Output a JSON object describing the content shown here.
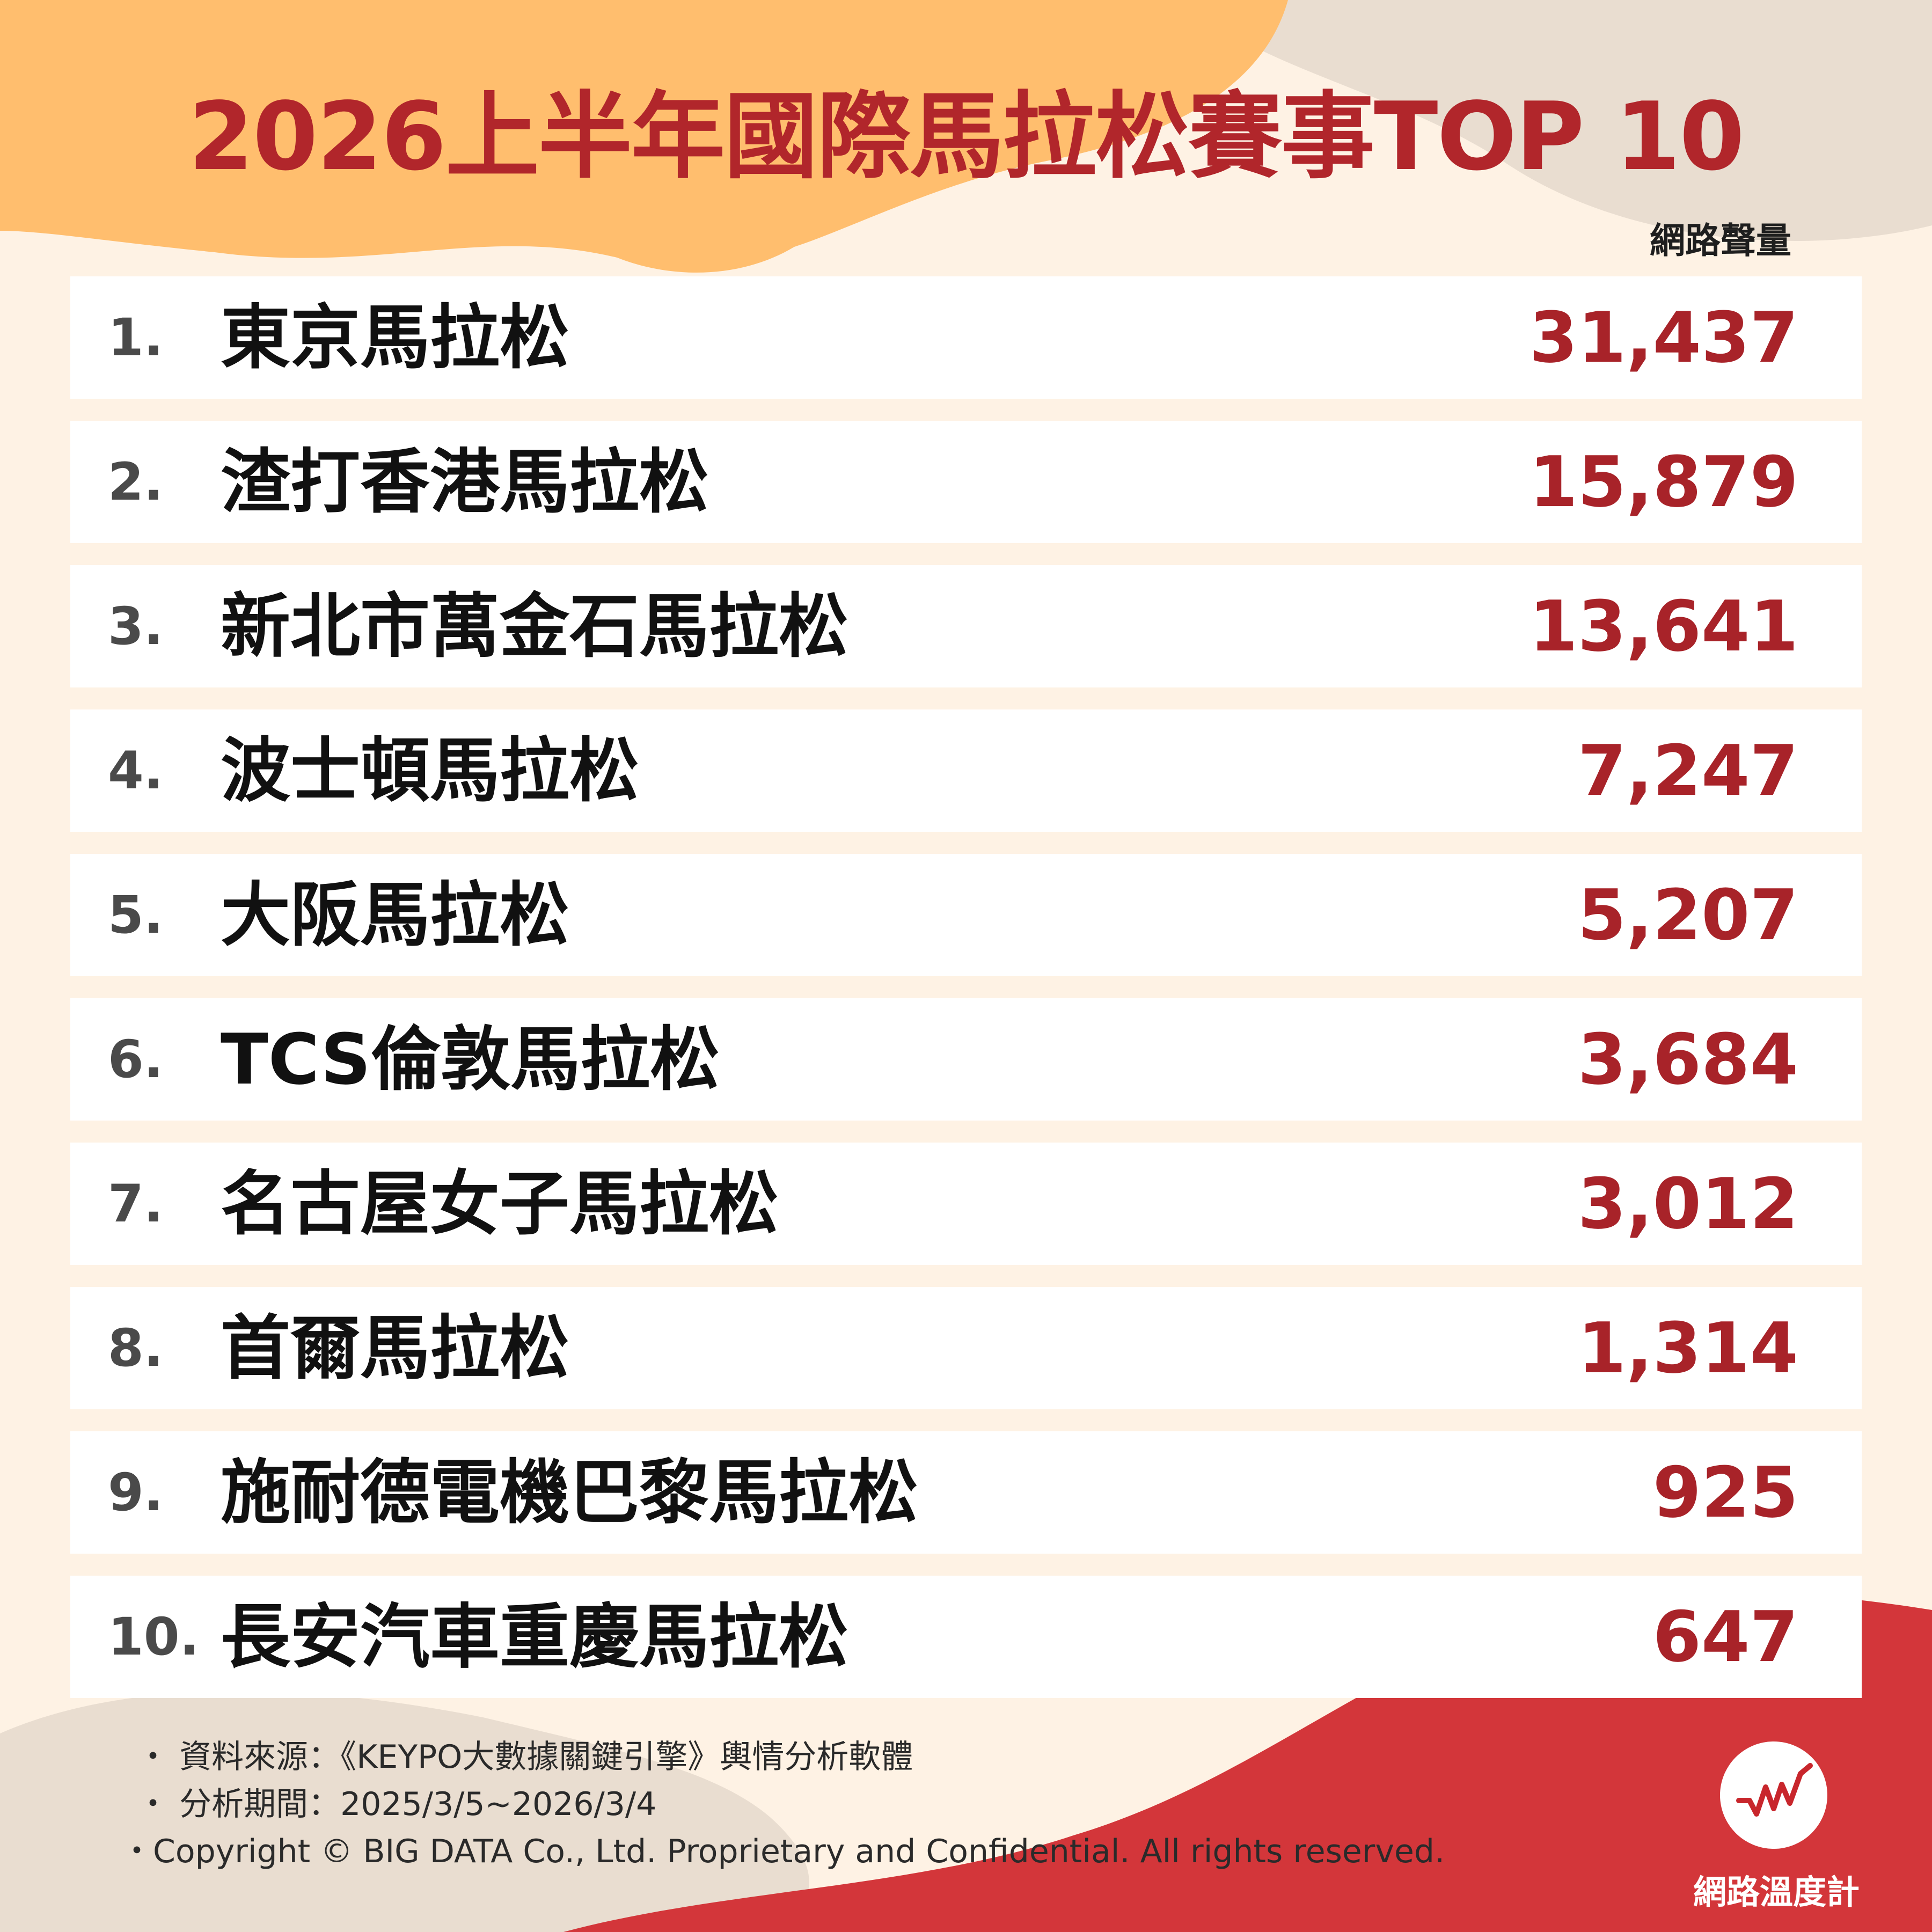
{
  "title": "2026上半年國際馬拉松賽事TOP 10",
  "column_header": "網路聲量",
  "colors": {
    "title": "#B1262B",
    "value": "#A82329",
    "background": "#FEF2E4",
    "accent_orange": "#FFBE6E",
    "accent_red": "#D3363A",
    "accent_beige": "#E9DDD0"
  },
  "chart_data": {
    "type": "table",
    "title": "2026上半年國際馬拉松賽事TOP 10",
    "columns": [
      "",
      "",
      "網路聲量"
    ],
    "rows": [
      {
        "rank": "1.",
        "name": "東京馬拉松",
        "value": "31,437"
      },
      {
        "rank": "2.",
        "name": "渣打香港馬拉松",
        "value": "15,879"
      },
      {
        "rank": "3.",
        "name": "新北市萬金石馬拉松",
        "value": "13,641"
      },
      {
        "rank": "4.",
        "name": "波士頓馬拉松",
        "value": "7,247"
      },
      {
        "rank": "5.",
        "name": "大阪馬拉松",
        "value": "5,207"
      },
      {
        "rank": "6.",
        "name": "TCS倫敦馬拉松",
        "value": "3,684"
      },
      {
        "rank": "7.",
        "name": "名古屋女子馬拉松",
        "value": "3,012"
      },
      {
        "rank": "8.",
        "name": "首爾馬拉松",
        "value": "1,314"
      },
      {
        "rank": "9.",
        "name": "施耐德電機巴黎馬拉松",
        "value": "925"
      },
      {
        "rank": "10.",
        "name": "長安汽車重慶馬拉松",
        "value": "647"
      }
    ]
  },
  "notes": [
    "・ 資料來源：《KEYPO大數據關鍵引擎》輿情分析軟體",
    "・ 分析期間：2025/3/5~2026/3/4",
    "・Copyright © BIG DATA Co., Ltd. Proprietary and Confidential. All rights reserved."
  ],
  "logo": {
    "text": "網路溫度計",
    "icon": "trend-line-icon"
  }
}
